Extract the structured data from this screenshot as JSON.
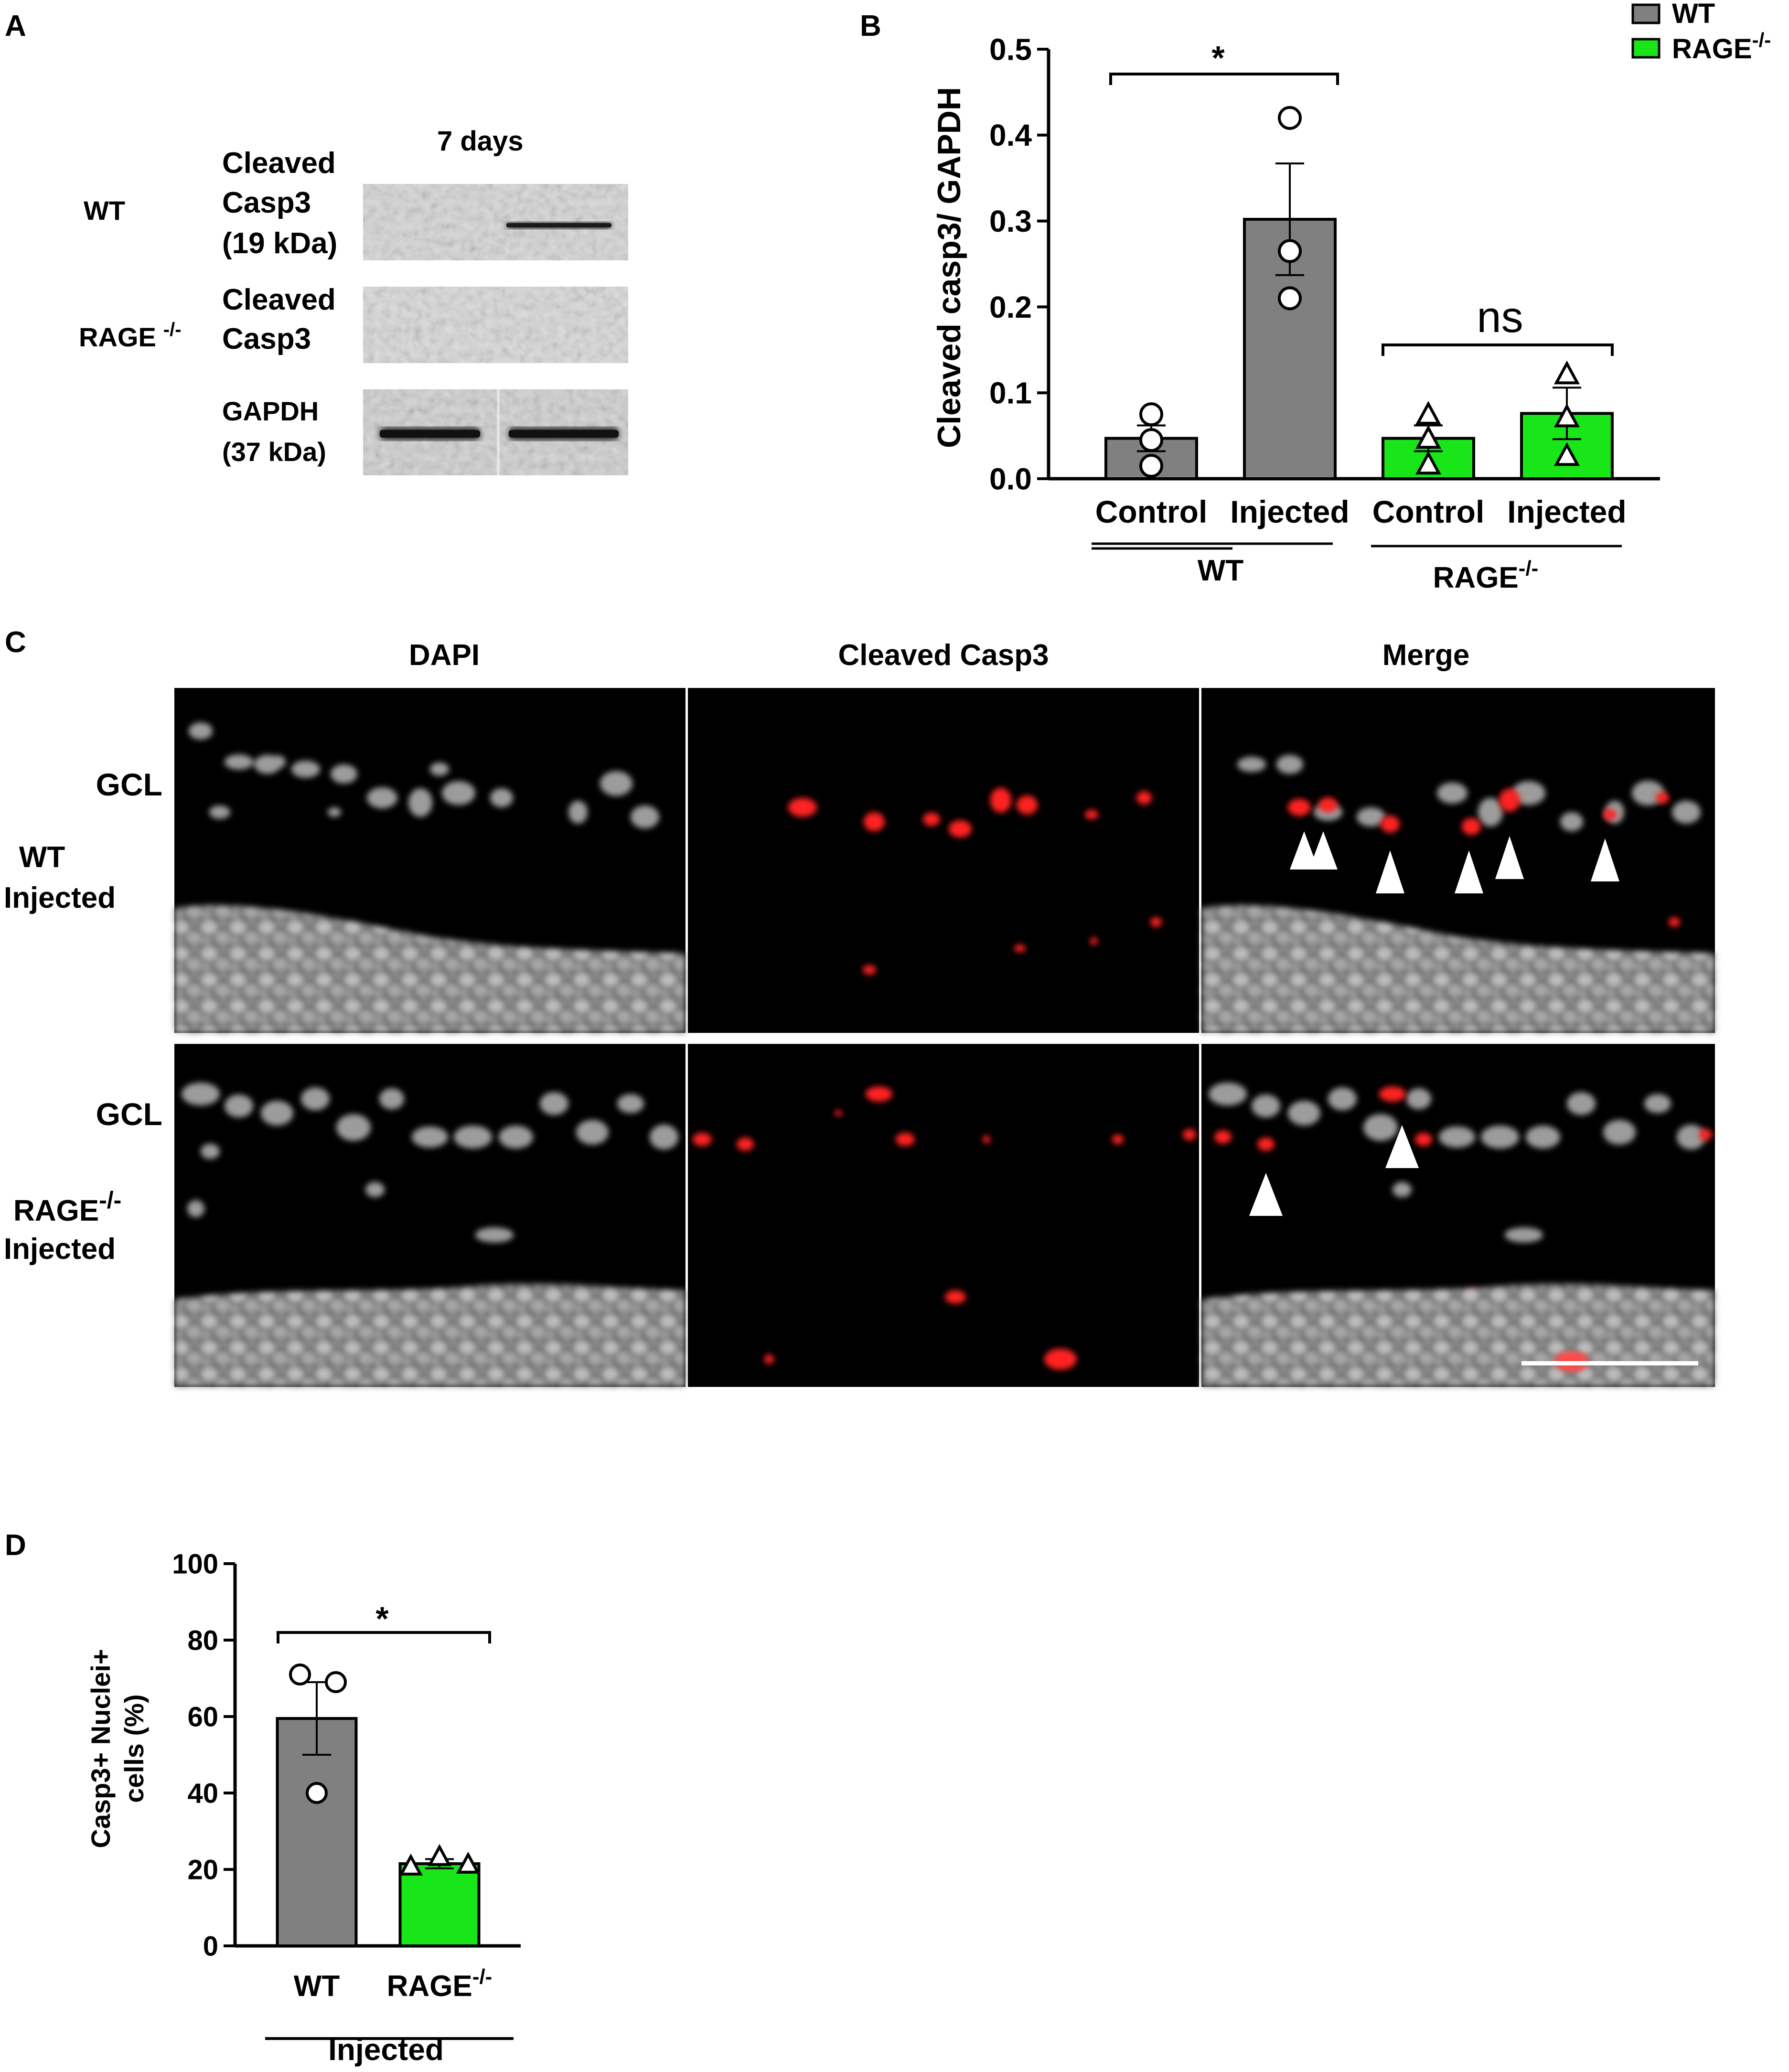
{
  "panelA": {
    "label": "A",
    "time_label": "7 days",
    "row_labels": [
      "WT",
      "RAGE"
    ],
    "rage_superscript": "-/-",
    "band_labels": {
      "wt_line1": "Cleaved",
      "wt_line2": "Casp3",
      "wt_line3": "(19 kDa)",
      "rage_line1": "Cleaved",
      "rage_line2": "Casp3",
      "gapdh_line1": "GAPDH",
      "gapdh_line2": "(37 kDa)"
    }
  },
  "panelB": {
    "label": "B",
    "legend": [
      "WT",
      "RAGE"
    ],
    "legend_superscript": "-/-",
    "ylabel": "Cleaved casp3/ GAPDH",
    "group_labels": [
      "WT",
      "RAGE"
    ],
    "group_superscript": "-/-",
    "sig_wt": "*",
    "sig_rage": "ns"
  },
  "panelC": {
    "label": "C",
    "column_headers": [
      "DAPI",
      "Cleaved Casp3",
      "Merge"
    ],
    "row1_gcl": "GCL",
    "row1_line1": "WT",
    "row1_line2": "Injected",
    "row2_gcl": "GCL",
    "row2_line1": "RAGE",
    "row2_superscript": "-/-",
    "row2_line2": "Injected"
  },
  "panelD": {
    "label": "D",
    "ylabel_line1": "Casp3+ Nuclei+",
    "ylabel_line2": "cells (%)",
    "group_label": "Injected",
    "cat_superscript": "-/-",
    "sig": "*"
  },
  "colors": {
    "wt": "#808080",
    "rage": "#19e619",
    "stain": "#ff2020"
  },
  "chart_data": [
    {
      "id": "B",
      "type": "bar",
      "categories": [
        "Control",
        "Injected",
        "Control",
        "Injected"
      ],
      "groups": [
        "WT",
        "WT",
        "RAGE-/-",
        "RAGE-/-"
      ],
      "values": [
        0.047,
        0.302,
        0.047,
        0.076
      ],
      "sem": [
        0.015,
        0.065,
        0.015,
        0.03
      ],
      "points": [
        [
          0.075,
          0.045,
          0.015
        ],
        [
          0.42,
          0.265,
          0.21
        ],
        [
          0.073,
          0.045,
          0.015
        ],
        [
          0.12,
          0.07,
          0.025
        ]
      ],
      "ylabel": "Cleaved casp3/ GAPDH",
      "ylim": [
        0,
        0.5
      ],
      "yticks": [
        "0.0",
        "0.1",
        "0.2",
        "0.3",
        "0.4",
        "0.5"
      ]
    },
    {
      "id": "D",
      "type": "bar",
      "categories": [
        "WT",
        "RAGE"
      ],
      "values": [
        59.5,
        21.5
      ],
      "sem": [
        9.5,
        1.2
      ],
      "points": [
        [
          71,
          69,
          40
        ],
        [
          23,
          21,
          20.5
        ]
      ],
      "ylabel": "Casp3+ Nuclei+ cells (%)",
      "xlabel": "Injected",
      "ylim": [
        0,
        100
      ],
      "yticks": [
        "0",
        "20",
        "40",
        "60",
        "80",
        "100"
      ]
    }
  ]
}
